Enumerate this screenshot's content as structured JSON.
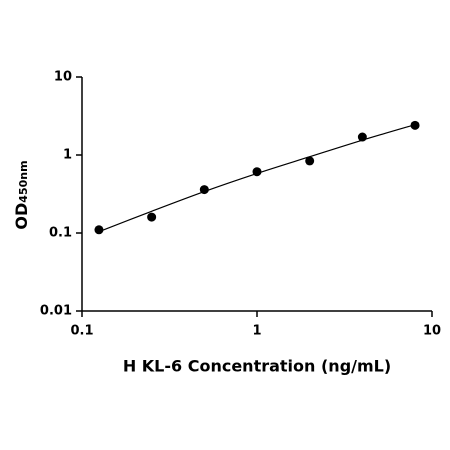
{
  "chart_data": {
    "type": "scatter",
    "xlabel": "H KL-6 Concentration (ng/mL)",
    "ylabel": {
      "main": "OD",
      "sub": "450nm"
    },
    "log_x": true,
    "log_y": true,
    "xlim": [
      0.1,
      10
    ],
    "xticks": [
      0.1,
      1,
      10
    ],
    "ylim": [
      0.01,
      10
    ],
    "yticks": [
      0.01,
      0.1,
      1,
      10
    ],
    "series": [
      {
        "color": "#000000",
        "x": [
          0.125,
          0.25,
          0.5,
          1,
          2,
          4,
          8
        ],
        "values": [
          0.11,
          0.16,
          0.36,
          0.61,
          0.84,
          1.7,
          2.4
        ]
      }
    ],
    "fit": {
      "color": "#000000",
      "x": [
        0.125,
        0.25,
        0.5,
        1,
        2,
        4,
        8
      ],
      "values": [
        0.104,
        0.19,
        0.34,
        0.58,
        0.95,
        1.55,
        2.45
      ]
    }
  }
}
